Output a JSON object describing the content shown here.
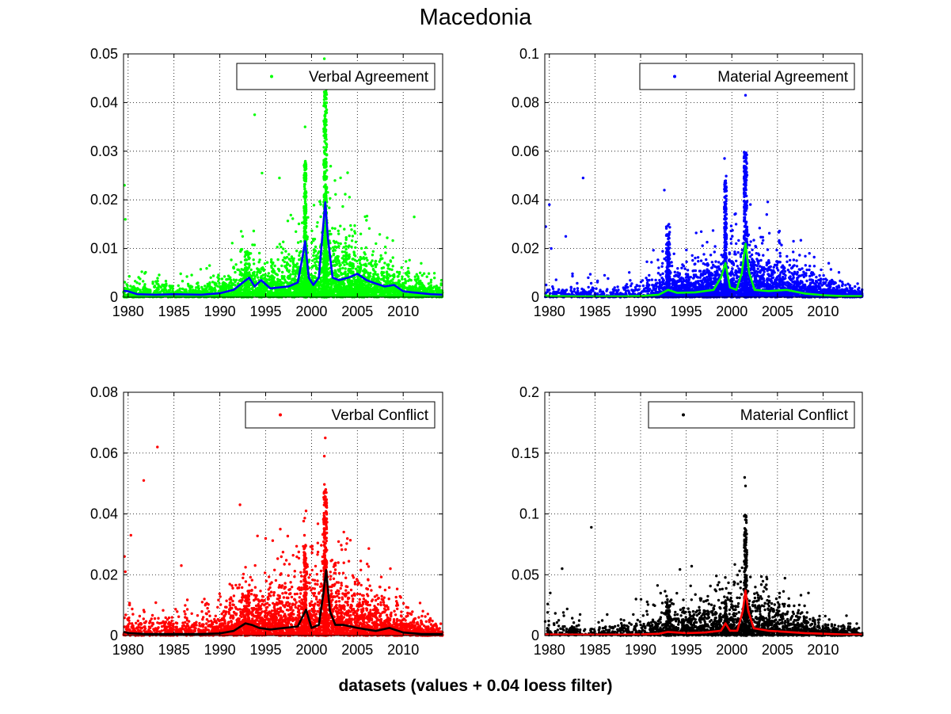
{
  "figure": {
    "title": "Macedonia",
    "footer": "datasets (values + 0.04 loess filter)"
  },
  "chart_data": [
    {
      "type": "scatter",
      "legend": "Verbal Agreement",
      "legend_position": "top-right",
      "grid": true,
      "xlim": [
        1979.5,
        2014.3
      ],
      "ylim": [
        0,
        0.05
      ],
      "xticks": [
        1980,
        1985,
        1990,
        1995,
        2000,
        2005,
        2010
      ],
      "yticks": [
        0,
        0.01,
        0.02,
        0.03,
        0.04,
        0.05
      ],
      "ytick_labels": [
        "0",
        "0.01",
        "0.02",
        "0.03",
        "0.04",
        "0.05"
      ],
      "marker_color": "#00ff00",
      "smooth_color": "#0000ff",
      "seed": 11,
      "scatter_profile": {
        "base": [
          [
            1979.5,
            0.0012
          ],
          [
            1985,
            0.0008
          ],
          [
            1990,
            0.0012
          ],
          [
            1992,
            0.0025
          ],
          [
            1995,
            0.0025
          ],
          [
            1998,
            0.003
          ],
          [
            2002,
            0.0045
          ],
          [
            2006,
            0.003
          ],
          [
            2010,
            0.0018
          ],
          [
            2014.3,
            0.0008
          ]
        ],
        "density": [
          [
            1979.5,
            1
          ],
          [
            1985,
            0.8
          ],
          [
            1990,
            1.2
          ],
          [
            1995,
            1.8
          ],
          [
            2000,
            2.4
          ],
          [
            2005,
            2.2
          ],
          [
            2010,
            1.4
          ],
          [
            2014.3,
            1
          ]
        ],
        "spikes": [
          [
            1999.3,
            0.25,
            0.028
          ],
          [
            2001.5,
            0.35,
            0.044
          ],
          [
            1993,
            0.5,
            0.01
          ]
        ],
        "points_per_year": 170
      },
      "outliers": [
        [
          1979.6,
          0.023
        ],
        [
          1979.7,
          0.016
        ],
        [
          1993.8,
          0.0375
        ],
        [
          1999.3,
          0.035
        ],
        [
          2001.4,
          0.049
        ],
        [
          2001.5,
          0.046
        ],
        [
          2001.6,
          0.04
        ],
        [
          2011.2,
          0.0165
        ],
        [
          1996.5,
          0.0245
        ],
        [
          1994.6,
          0.0255
        ]
      ],
      "smoothed": {
        "x": [
          1979.5,
          1980,
          1981,
          1983,
          1985,
          1988,
          1990,
          1991.5,
          1992.5,
          1993.2,
          1993.8,
          1994.5,
          1995.5,
          1996.5,
          1997.5,
          1998.5,
          1999.0,
          1999.3,
          1999.7,
          2000.2,
          2000.8,
          2001.2,
          2001.5,
          2001.8,
          2002.3,
          2003,
          2004,
          2005,
          2006,
          2007,
          2008,
          2009,
          2010,
          2011,
          2012,
          2013,
          2014.3
        ],
        "y": [
          0.0013,
          0.0012,
          0.0006,
          0.0005,
          0.0006,
          0.0005,
          0.0008,
          0.0015,
          0.003,
          0.004,
          0.0022,
          0.0035,
          0.0018,
          0.002,
          0.0022,
          0.003,
          0.008,
          0.0115,
          0.004,
          0.0025,
          0.004,
          0.013,
          0.0195,
          0.012,
          0.004,
          0.0035,
          0.004,
          0.0048,
          0.0035,
          0.0028,
          0.0022,
          0.0025,
          0.0012,
          0.001,
          0.0008,
          0.0006,
          0.0005
        ]
      }
    },
    {
      "type": "scatter",
      "legend": "Material Agreement",
      "legend_position": "top-right",
      "grid": true,
      "xlim": [
        1979.5,
        2014.3
      ],
      "ylim": [
        0,
        0.1
      ],
      "xticks": [
        1980,
        1985,
        1990,
        1995,
        2000,
        2005,
        2010
      ],
      "yticks": [
        0,
        0.02,
        0.04,
        0.06,
        0.08,
        0.1
      ],
      "ytick_labels": [
        "0",
        "0.02",
        "0.04",
        "0.06",
        "0.08",
        "0.1"
      ],
      "marker_color": "#0000ff",
      "smooth_color": "#00ff00",
      "seed": 23,
      "scatter_profile": {
        "base": [
          [
            1979.5,
            0.0015
          ],
          [
            1985,
            0.0015
          ],
          [
            1990,
            0.002
          ],
          [
            1992,
            0.004
          ],
          [
            1995,
            0.004
          ],
          [
            1998,
            0.005
          ],
          [
            2002,
            0.007
          ],
          [
            2006,
            0.005
          ],
          [
            2010,
            0.0025
          ],
          [
            2014.3,
            0.001
          ]
        ],
        "density": [
          [
            1979.5,
            0.4
          ],
          [
            1985,
            0.4
          ],
          [
            1990,
            0.7
          ],
          [
            1992,
            1.6
          ],
          [
            1995,
            2
          ],
          [
            2000,
            2.4
          ],
          [
            2005,
            2.2
          ],
          [
            2010,
            1.4
          ],
          [
            2014.3,
            1
          ]
        ],
        "spikes": [
          [
            1999.3,
            0.25,
            0.05
          ],
          [
            2001.5,
            0.35,
            0.06
          ],
          [
            1993,
            0.4,
            0.03
          ]
        ],
        "points_per_year": 150
      },
      "outliers": [
        [
          1979.6,
          0.029
        ],
        [
          1980,
          0.038
        ],
        [
          1980.2,
          0.02
        ],
        [
          1983.7,
          0.049
        ],
        [
          1981.8,
          0.025
        ],
        [
          2001.5,
          0.083
        ],
        [
          1999.2,
          0.057
        ],
        [
          1992.6,
          0.044
        ],
        [
          2008.5,
          0.018
        ]
      ],
      "smoothed": {
        "x": [
          1979.5,
          1980,
          1983,
          1985,
          1988,
          1990,
          1992,
          1993,
          1994,
          1996,
          1998,
          1998.8,
          1999.3,
          1999.8,
          2000.5,
          2001.1,
          2001.5,
          2001.9,
          2002.5,
          2004,
          2006,
          2008,
          2010,
          2012,
          2014.3
        ],
        "y": [
          0.0008,
          0.0005,
          0.0003,
          0.0003,
          0.0003,
          0.0005,
          0.001,
          0.003,
          0.0018,
          0.002,
          0.003,
          0.008,
          0.014,
          0.004,
          0.003,
          0.01,
          0.022,
          0.01,
          0.003,
          0.0025,
          0.003,
          0.0015,
          0.0008,
          0.0005,
          0.0004
        ]
      }
    },
    {
      "type": "scatter",
      "legend": "Verbal Conflict",
      "legend_position": "top-right",
      "grid": true,
      "xlim": [
        1979.5,
        2014.3
      ],
      "ylim": [
        0,
        0.08
      ],
      "xticks": [
        1980,
        1985,
        1990,
        1995,
        2000,
        2005,
        2010
      ],
      "yticks": [
        0,
        0.02,
        0.04,
        0.06,
        0.08
      ],
      "ytick_labels": [
        "0",
        "0.02",
        "0.04",
        "0.06",
        "0.08"
      ],
      "marker_color": "#ff0000",
      "smooth_color": "#000000",
      "seed": 37,
      "scatter_profile": {
        "base": [
          [
            1979.5,
            0.0025
          ],
          [
            1985,
            0.002
          ],
          [
            1990,
            0.003
          ],
          [
            1992,
            0.005
          ],
          [
            1995,
            0.005
          ],
          [
            1998,
            0.006
          ],
          [
            2002,
            0.008
          ],
          [
            2006,
            0.005
          ],
          [
            2010,
            0.0025
          ],
          [
            2014.3,
            0.001
          ]
        ],
        "density": [
          [
            1979.5,
            0.7
          ],
          [
            1985,
            0.6
          ],
          [
            1990,
            1.0
          ],
          [
            1992,
            1.8
          ],
          [
            1995,
            2.0
          ],
          [
            2000,
            2.4
          ],
          [
            2005,
            2.2
          ],
          [
            2010,
            1.4
          ],
          [
            2014.3,
            1
          ]
        ],
        "spikes": [
          [
            1999.3,
            0.25,
            0.03
          ],
          [
            2001.5,
            0.35,
            0.05
          ],
          [
            1993,
            0.5,
            0.015
          ]
        ],
        "points_per_year": 160
      },
      "outliers": [
        [
          1979.6,
          0.026
        ],
        [
          1979.7,
          0.021
        ],
        [
          1983.2,
          0.062
        ],
        [
          1981.7,
          0.051
        ],
        [
          1980.3,
          0.033
        ],
        [
          1985.8,
          0.023
        ],
        [
          2001.5,
          0.065
        ],
        [
          2001.4,
          0.059
        ],
        [
          1999.4,
          0.041
        ],
        [
          1996.6,
          0.035
        ],
        [
          2008.6,
          0.022
        ],
        [
          1992.2,
          0.043
        ]
      ],
      "smoothed": {
        "x": [
          1979.5,
          1980,
          1982,
          1985,
          1988,
          1990,
          1991.5,
          1992.8,
          1993.5,
          1994.3,
          1995.5,
          1997,
          1998.5,
          1999.4,
          2000,
          2000.8,
          2001.3,
          2001.6,
          2002,
          2002.6,
          2003.5,
          2005,
          2007,
          2008.5,
          2010,
          2012,
          2014.3
        ],
        "y": [
          0.0012,
          0.0008,
          0.0005,
          0.0005,
          0.0005,
          0.0007,
          0.0015,
          0.004,
          0.0035,
          0.0025,
          0.002,
          0.0025,
          0.003,
          0.0085,
          0.0025,
          0.0035,
          0.014,
          0.0215,
          0.008,
          0.0035,
          0.0035,
          0.0025,
          0.0015,
          0.0025,
          0.001,
          0.0005,
          0.0005
        ]
      }
    },
    {
      "type": "scatter",
      "legend": "Material Conflict",
      "legend_position": "top-right",
      "grid": true,
      "xlim": [
        1979.5,
        2014.3
      ],
      "ylim": [
        0,
        0.2
      ],
      "xticks": [
        1980,
        1985,
        1990,
        1995,
        2000,
        2005,
        2010
      ],
      "yticks": [
        0,
        0.05,
        0.1,
        0.15,
        0.2
      ],
      "ytick_labels": [
        "0",
        "0.05",
        "0.1",
        "0.15",
        "0.2"
      ],
      "marker_color": "#000000",
      "smooth_color": "#ff0000",
      "seed": 53,
      "scatter_profile": {
        "base": [
          [
            1979.5,
            0.005
          ],
          [
            1985,
            0.004
          ],
          [
            1990,
            0.005
          ],
          [
            1992,
            0.008
          ],
          [
            1995,
            0.009
          ],
          [
            1998,
            0.01
          ],
          [
            2002,
            0.012
          ],
          [
            2006,
            0.008
          ],
          [
            2010,
            0.004
          ],
          [
            2014.3,
            0.002
          ]
        ],
        "density": [
          [
            1979.5,
            0.5
          ],
          [
            1985,
            0.4
          ],
          [
            1990,
            0.7
          ],
          [
            1992,
            1.2
          ],
          [
            1995,
            1.6
          ],
          [
            2000,
            2.2
          ],
          [
            2005,
            2.0
          ],
          [
            2010,
            1.2
          ],
          [
            2014.3,
            0.9
          ]
        ],
        "spikes": [
          [
            1999.3,
            0.25,
            0.03
          ],
          [
            2001.5,
            0.3,
            0.1
          ],
          [
            1993,
            0.5,
            0.03
          ]
        ],
        "points_per_year": 120
      },
      "outliers": [
        [
          1984.6,
          0.089
        ],
        [
          1981.4,
          0.055
        ],
        [
          1980.1,
          0.035
        ],
        [
          2001.4,
          0.13
        ],
        [
          2001.5,
          0.123
        ],
        [
          1995.6,
          0.057
        ],
        [
          2008.4,
          0.035
        ],
        [
          1989.5,
          0.03
        ]
      ],
      "smoothed": {
        "x": [
          1979.5,
          1982,
          1985,
          1988,
          1990,
          1992,
          1993,
          1995,
          1997,
          1998.8,
          1999.3,
          1999.8,
          2000.6,
          2001.2,
          2001.5,
          2001.8,
          2002.4,
          2004,
          2006,
          2008,
          2010,
          2012,
          2014.3
        ],
        "y": [
          0.001,
          0.0008,
          0.0008,
          0.0008,
          0.001,
          0.0015,
          0.003,
          0.002,
          0.0025,
          0.004,
          0.01,
          0.004,
          0.004,
          0.02,
          0.037,
          0.02,
          0.006,
          0.004,
          0.003,
          0.002,
          0.0015,
          0.001,
          0.0008
        ]
      }
    }
  ]
}
